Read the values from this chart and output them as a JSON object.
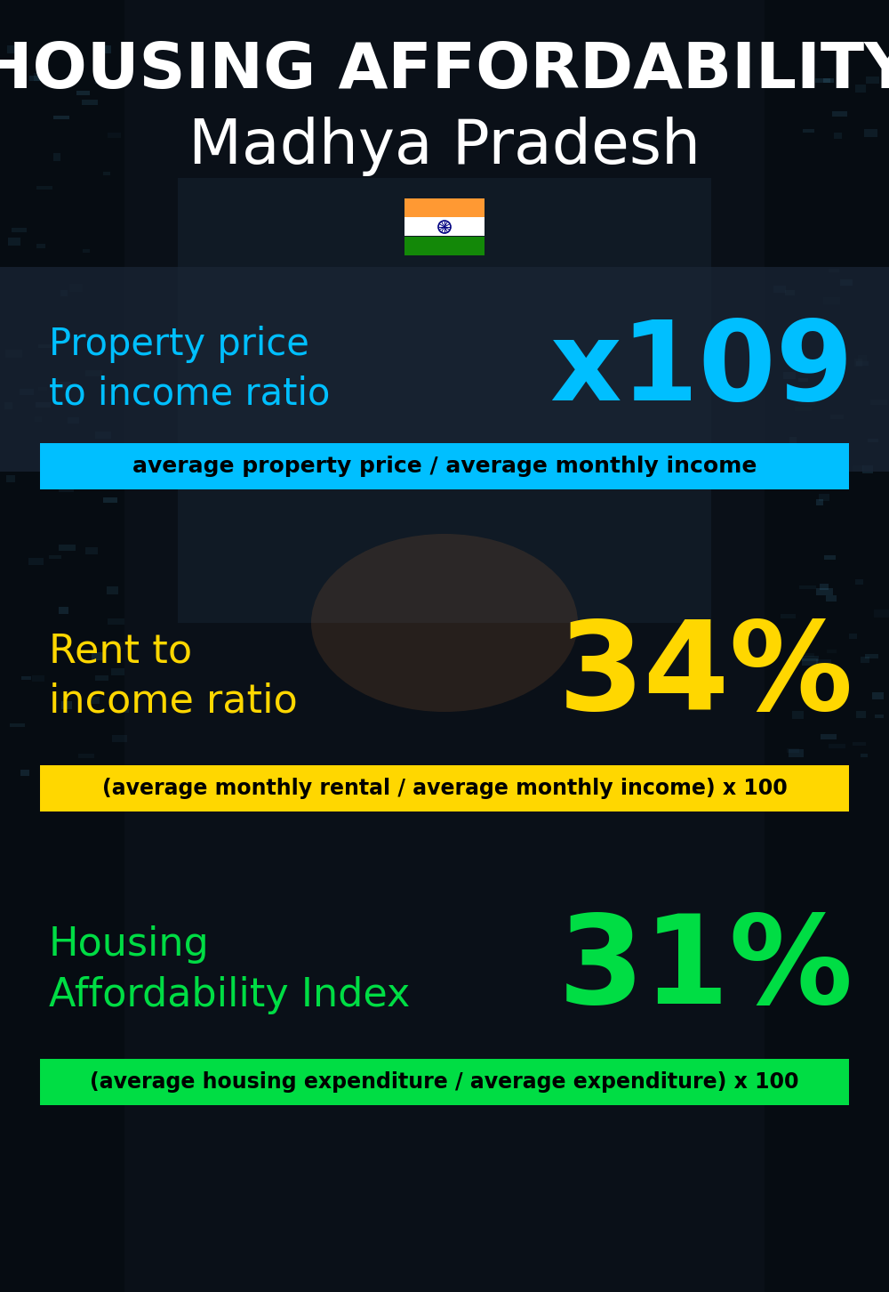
{
  "title_line1": "HOUSING AFFORDABILITY",
  "title_line2": "Madhya Pradesh",
  "section1_label": "Property price\nto income ratio",
  "section1_value": "x109",
  "section1_label_color": "#00BFFF",
  "section1_value_color": "#00BFFF",
  "section1_banner_text": "average property price / average monthly income",
  "section1_banner_bg": "#00BFFF",
  "section2_label": "Rent to\nincome ratio",
  "section2_value": "34%",
  "section2_label_color": "#FFD700",
  "section2_value_color": "#FFD700",
  "section2_banner_text": "(average monthly rental / average monthly income) x 100",
  "section2_banner_bg": "#FFD700",
  "section3_label": "Housing\nAffordability Index",
  "section3_value": "31%",
  "section3_label_color": "#00DD44",
  "section3_value_color": "#00DD44",
  "section3_banner_text": "(average housing expenditure / average expenditure) x 100",
  "section3_banner_bg": "#00DD44",
  "bg_color": "#0A1018",
  "title_color": "#FFFFFF",
  "banner_text_color": "#000000",
  "flag_orange": "#FF9933",
  "flag_white": "#FFFFFF",
  "flag_green": "#138808",
  "flag_navy": "#000080"
}
